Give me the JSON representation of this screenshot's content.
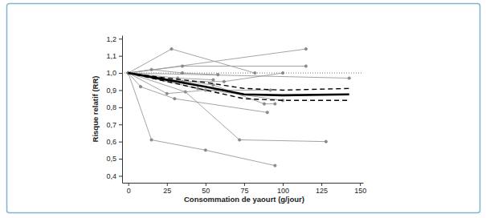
{
  "chart_data": {
    "type": "line",
    "x_label": "Consommation de yaourt (g/jour)",
    "y_label": "Risque relatif (RR)",
    "xlim": [
      -4,
      152
    ],
    "ylim": [
      0.36,
      1.22
    ],
    "xticks": [
      0,
      25,
      50,
      75,
      100,
      125,
      150
    ],
    "yticks": [
      {
        "value": 0.4,
        "label": "0,4"
      },
      {
        "value": 0.5,
        "label": "0,5"
      },
      {
        "value": 0.6,
        "label": "0,6"
      },
      {
        "value": 0.7,
        "label": "0,7"
      },
      {
        "value": 0.8,
        "label": "0,8"
      },
      {
        "value": 0.9,
        "label": "0,9"
      },
      {
        "value": 1.0,
        "label": "1,0"
      },
      {
        "value": 1.1,
        "label": "1,1"
      },
      {
        "value": 1.2,
        "label": "1,2"
      }
    ],
    "reference_line": 1,
    "grid": false,
    "series": [
      {
        "color": "#9a9a9a",
        "line_style": "solid",
        "marker": "circle",
        "x": [
          0,
          28,
          82
        ],
        "values": [
          1,
          1.14,
          1.0
        ]
      },
      {
        "color": "#9a9a9a",
        "line_style": "solid",
        "marker": "circle",
        "x": [
          0,
          115
        ],
        "values": [
          1,
          1.14
        ]
      },
      {
        "color": "#9a9a9a",
        "line_style": "solid",
        "marker": "circle",
        "x": [
          0,
          35,
          115
        ],
        "values": [
          1,
          1.04,
          1.04
        ]
      },
      {
        "color": "#9a9a9a",
        "line_style": "solid",
        "marker": "circle",
        "x": [
          0,
          143
        ],
        "values": [
          1,
          0.97
        ]
      },
      {
        "color": "#9a9a9a",
        "line_style": "solid",
        "marker": "circle",
        "x": [
          0,
          15,
          50,
          95
        ],
        "values": [
          1,
          0.61,
          0.55,
          0.46
        ]
      },
      {
        "color": "#9a9a9a",
        "line_style": "solid",
        "marker": "circle",
        "x": [
          0,
          37,
          72,
          128
        ],
        "values": [
          1,
          0.89,
          0.61,
          0.6
        ]
      },
      {
        "color": "#9a9a9a",
        "line_style": "solid",
        "marker": "circle",
        "x": [
          0,
          8,
          30,
          90
        ],
        "values": [
          1,
          0.92,
          0.85,
          0.77
        ]
      },
      {
        "color": "#9a9a9a",
        "line_style": "solid",
        "marker": "circle",
        "x": [
          0,
          15,
          35,
          58
        ],
        "values": [
          1,
          1.02,
          1.0,
          0.99
        ]
      },
      {
        "color": "#9a9a9a",
        "line_style": "solid",
        "marker": "circle",
        "x": [
          0,
          45,
          100
        ],
        "values": [
          1,
          0.91,
          0.84
        ]
      },
      {
        "color": "#9a9a9a",
        "line_style": "solid",
        "marker": "circle",
        "x": [
          0,
          20,
          55,
          88,
          95
        ],
        "values": [
          1,
          0.97,
          0.93,
          0.82,
          0.82
        ]
      },
      {
        "color": "#9a9a9a",
        "line_style": "solid",
        "marker": "circle",
        "x": [
          0,
          25,
          50,
          92
        ],
        "values": [
          1,
          0.88,
          0.9,
          0.9
        ]
      },
      {
        "color": "#9a9a9a",
        "line_style": "solid",
        "marker": "circle",
        "x": [
          0,
          35,
          62,
          100
        ],
        "values": [
          1,
          0.95,
          0.95,
          1.0
        ]
      },
      {
        "color": "#9a9a9a",
        "line_style": "solid",
        "marker": "circle",
        "x": [
          0,
          32,
          55
        ],
        "values": [
          1,
          0.97,
          0.96
        ]
      },
      {
        "color": "#000000",
        "line_style": "dashed",
        "marker": "none",
        "x": [
          0,
          25,
          50,
          75,
          100,
          143
        ],
        "values": [
          1,
          0.97,
          0.945,
          0.91,
          0.9,
          0.91
        ]
      },
      {
        "color": "#000000",
        "line_style": "dashed",
        "marker": "none",
        "x": [
          0,
          25,
          50,
          75,
          100,
          143
        ],
        "values": [
          1,
          0.95,
          0.9,
          0.85,
          0.84,
          0.84
        ]
      },
      {
        "color": "#000000",
        "line_style": "solid",
        "marker": "none",
        "x": [
          0,
          25,
          50,
          75,
          100,
          143
        ],
        "values": [
          1,
          0.96,
          0.92,
          0.875,
          0.87,
          0.875
        ]
      }
    ]
  }
}
